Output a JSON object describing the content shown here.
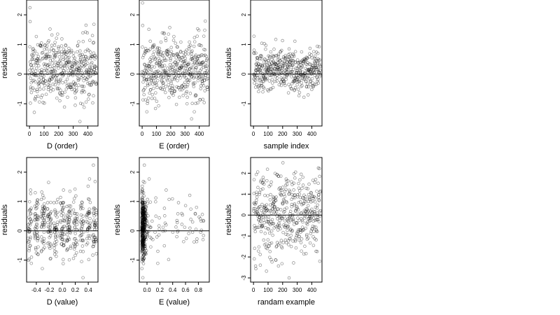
{
  "chart_data": [
    {
      "type": "scatter",
      "xlabel": "D (order)",
      "ylabel": "residuals",
      "xlim": [
        -20,
        470
      ],
      "ylim": [
        -1.75,
        2.5
      ],
      "xticks": [
        0,
        100,
        200,
        300,
        400
      ],
      "xtick_labels": [
        "0",
        "100",
        "200",
        "300",
        "400"
      ],
      "yticks": [
        -1,
        0,
        1,
        2
      ],
      "ytick_labels": [
        "-1",
        "0",
        "1",
        "2"
      ],
      "hline": 0,
      "x": [],
      "y": []
    },
    {
      "type": "scatter",
      "xlabel": "E (order)",
      "ylabel": "residuals",
      "xlim": [
        -20,
        470
      ],
      "ylim": [
        -1.75,
        2.5
      ],
      "xticks": [
        0,
        100,
        200,
        300,
        400
      ],
      "xtick_labels": [
        "0",
        "100",
        "200",
        "300",
        "400"
      ],
      "yticks": [
        -1,
        0,
        1,
        2
      ],
      "ytick_labels": [
        "-1",
        "0",
        "1",
        "2"
      ],
      "hline": 0,
      "x": [],
      "y": []
    },
    {
      "type": "scatter",
      "xlabel": "sample index",
      "ylabel": "residuals",
      "xlim": [
        -20,
        470
      ],
      "ylim": [
        -1.75,
        2.5
      ],
      "xticks": [
        0,
        100,
        200,
        300,
        400
      ],
      "xtick_labels": [
        "0",
        "100",
        "200",
        "300",
        "400"
      ],
      "yticks": [
        -1,
        0,
        1,
        2
      ],
      "ytick_labels": [
        "-1",
        "0",
        "1",
        "2"
      ],
      "hline": 0,
      "x": [],
      "y": []
    },
    {
      "type": "scatter",
      "xlabel": "D (value)",
      "ylabel": "residuals",
      "xlim": [
        -0.55,
        0.55
      ],
      "ylim": [
        -1.75,
        2.5
      ],
      "xticks": [
        -0.4,
        -0.2,
        0,
        0.2,
        0.4
      ],
      "xtick_labels": [
        "-0.4",
        "-0.2",
        "0.0",
        "0.2",
        "0.4"
      ],
      "yticks": [
        -1,
        0,
        1,
        2
      ],
      "ytick_labels": [
        "-1",
        "0",
        "1",
        "2"
      ],
      "hline": 0,
      "x": [],
      "y": []
    },
    {
      "type": "scatter",
      "xlabel": "E (value)",
      "ylabel": "residuals",
      "xlim": [
        -0.12,
        0.97
      ],
      "ylim": [
        -1.75,
        2.5
      ],
      "xticks": [
        0,
        0.2,
        0.4,
        0.6,
        0.8
      ],
      "xtick_labels": [
        "0.0",
        "0.2",
        "0.4",
        "0.6",
        "0.8"
      ],
      "yticks": [
        -1,
        0,
        1,
        2
      ],
      "ytick_labels": [
        "-1",
        "0",
        "1",
        "2"
      ],
      "hline": 0,
      "x": [],
      "y": []
    },
    {
      "type": "scatter",
      "xlabel": "randam example",
      "ylabel": "residuals",
      "xlim": [
        -20,
        470
      ],
      "ylim": [
        -3.2,
        2.75
      ],
      "xticks": [
        0,
        100,
        200,
        300,
        400
      ],
      "xtick_labels": [
        "0",
        "100",
        "200",
        "300",
        "400"
      ],
      "yticks": [
        -3,
        -2,
        -1,
        0,
        1,
        2
      ],
      "ytick_labels": [
        "-3",
        "-2",
        "-1",
        "0",
        "1",
        "2"
      ],
      "hline": 0,
      "x": [],
      "y": []
    }
  ]
}
